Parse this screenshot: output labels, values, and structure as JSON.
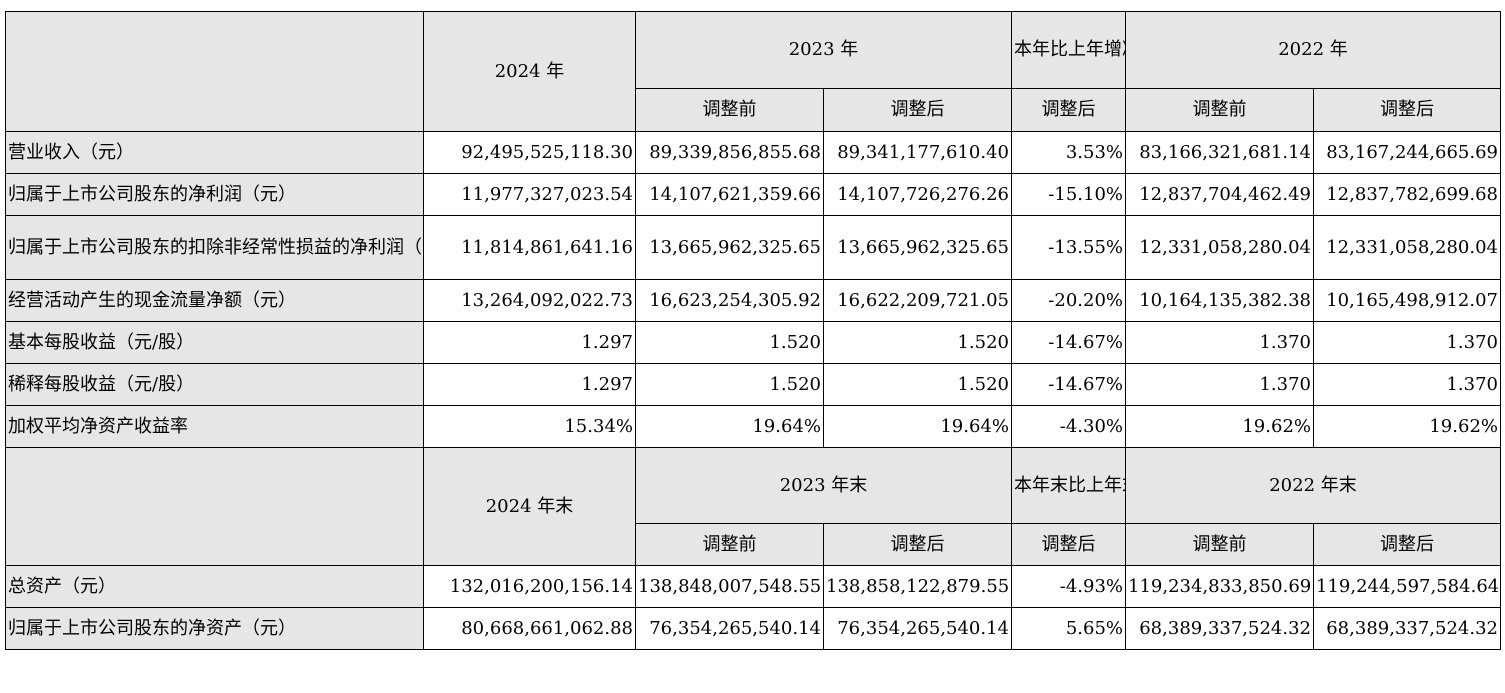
{
  "header1": {
    "col_2024": "2024 年",
    "col_2023": "2023 年",
    "col_change": "本年比上年增减",
    "col_2022": "2022 年",
    "before_adjust": "调整前",
    "after_adjust": "调整后"
  },
  "rows1": [
    {
      "label": "营业收入（元）",
      "v2024": "92,495,525,118.30",
      "v2023_before": "89,339,856,855.68",
      "v2023_after": "89,341,177,610.40",
      "change": "3.53%",
      "v2022_before": "83,166,321,681.14",
      "v2022_after": "83,167,244,665.69"
    },
    {
      "label": "归属于上市公司股东的净利润（元）",
      "v2024": "11,977,327,023.54",
      "v2023_before": "14,107,621,359.66",
      "v2023_after": "14,107,726,276.26",
      "change": "-15.10%",
      "v2022_before": "12,837,704,462.49",
      "v2022_after": "12,837,782,699.68"
    },
    {
      "label": "归属于上市公司股东的扣除非经常性损益的净利润（元）",
      "v2024": "11,814,861,641.16",
      "v2023_before": "13,665,962,325.65",
      "v2023_after": "13,665,962,325.65",
      "change": "-13.55%",
      "v2022_before": "12,331,058,280.04",
      "v2022_after": "12,331,058,280.04"
    },
    {
      "label": "经营活动产生的现金流量净额（元）",
      "v2024": "13,264,092,022.73",
      "v2023_before": "16,623,254,305.92",
      "v2023_after": "16,622,209,721.05",
      "change": "-20.20%",
      "v2022_before": "10,164,135,382.38",
      "v2022_after": "10,165,498,912.07"
    },
    {
      "label": "基本每股收益（元/股）",
      "v2024": "1.297",
      "v2023_before": "1.520",
      "v2023_after": "1.520",
      "change": "-14.67%",
      "v2022_before": "1.370",
      "v2022_after": "1.370"
    },
    {
      "label": "稀释每股收益（元/股）",
      "v2024": "1.297",
      "v2023_before": "1.520",
      "v2023_after": "1.520",
      "change": "-14.67%",
      "v2022_before": "1.370",
      "v2022_after": "1.370"
    },
    {
      "label": "加权平均净资产收益率",
      "v2024": "15.34%",
      "v2023_before": "19.64%",
      "v2023_after": "19.64%",
      "change": "-4.30%",
      "v2022_before": "19.62%",
      "v2022_after": "19.62%"
    }
  ],
  "header2": {
    "col_2024": "2024 年末",
    "col_2023": "2023 年末",
    "col_change": "本年末比上年末增减",
    "col_2022": "2022 年末",
    "before_adjust": "调整前",
    "after_adjust": "调整后"
  },
  "rows2": [
    {
      "label": "总资产（元）",
      "v2024": "132,016,200,156.14",
      "v2023_before": "138,848,007,548.55",
      "v2023_after": "138,858,122,879.55",
      "change": "-4.93%",
      "v2022_before": "119,234,833,850.69",
      "v2022_after": "119,244,597,584.64"
    },
    {
      "label": "归属于上市公司股东的净资产（元）",
      "v2024": "80,668,661,062.88",
      "v2023_before": "76,354,265,540.14",
      "v2023_after": "76,354,265,540.14",
      "change": "5.65%",
      "v2022_before": "68,389,337,524.32",
      "v2022_after": "68,389,337,524.32"
    }
  ]
}
